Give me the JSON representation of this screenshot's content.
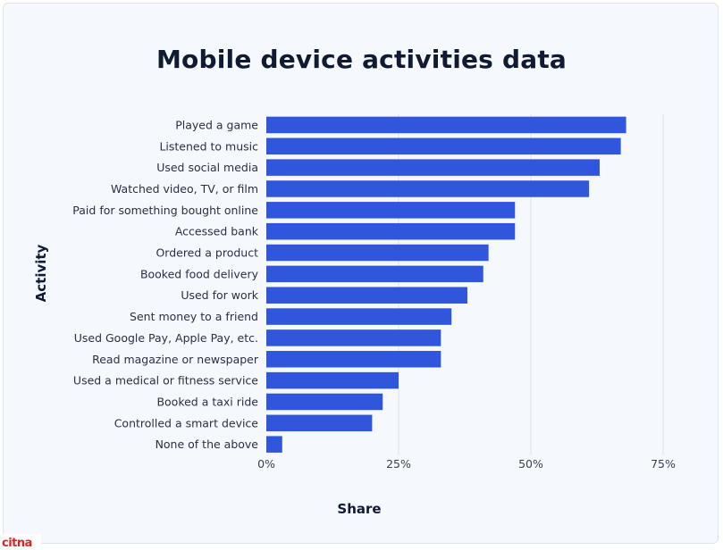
{
  "chart_data": {
    "type": "bar",
    "orientation": "horizontal",
    "title": "Mobile device activities data",
    "xlabel": "Share",
    "ylabel": "Activity",
    "categories": [
      "Played a game",
      "Listened to music",
      "Used social media",
      "Watched video, TV, or film",
      "Paid for something bought online",
      "Accessed bank",
      "Ordered a product",
      "Booked food delivery",
      "Used for work",
      "Sent money to a friend",
      "Used Google Pay, Apple Pay, etc.",
      "Read magazine or newspaper",
      "Used a medical or fitness service",
      "Booked a taxi ride",
      "Controlled a smart device",
      "None of the above"
    ],
    "values": [
      68,
      67,
      63,
      61,
      47,
      47,
      42,
      41,
      38,
      35,
      33,
      33,
      25,
      22,
      20,
      3
    ],
    "xlim": [
      0,
      75
    ],
    "xticks": [
      0,
      25,
      50,
      75
    ],
    "xtick_labels": [
      "0%",
      "25%",
      "50%",
      "75%"
    ],
    "grid": "vertical",
    "bar_color": "#2f56db"
  },
  "watermark": {
    "text": "CITNA",
    "color": "#d6262c"
  }
}
